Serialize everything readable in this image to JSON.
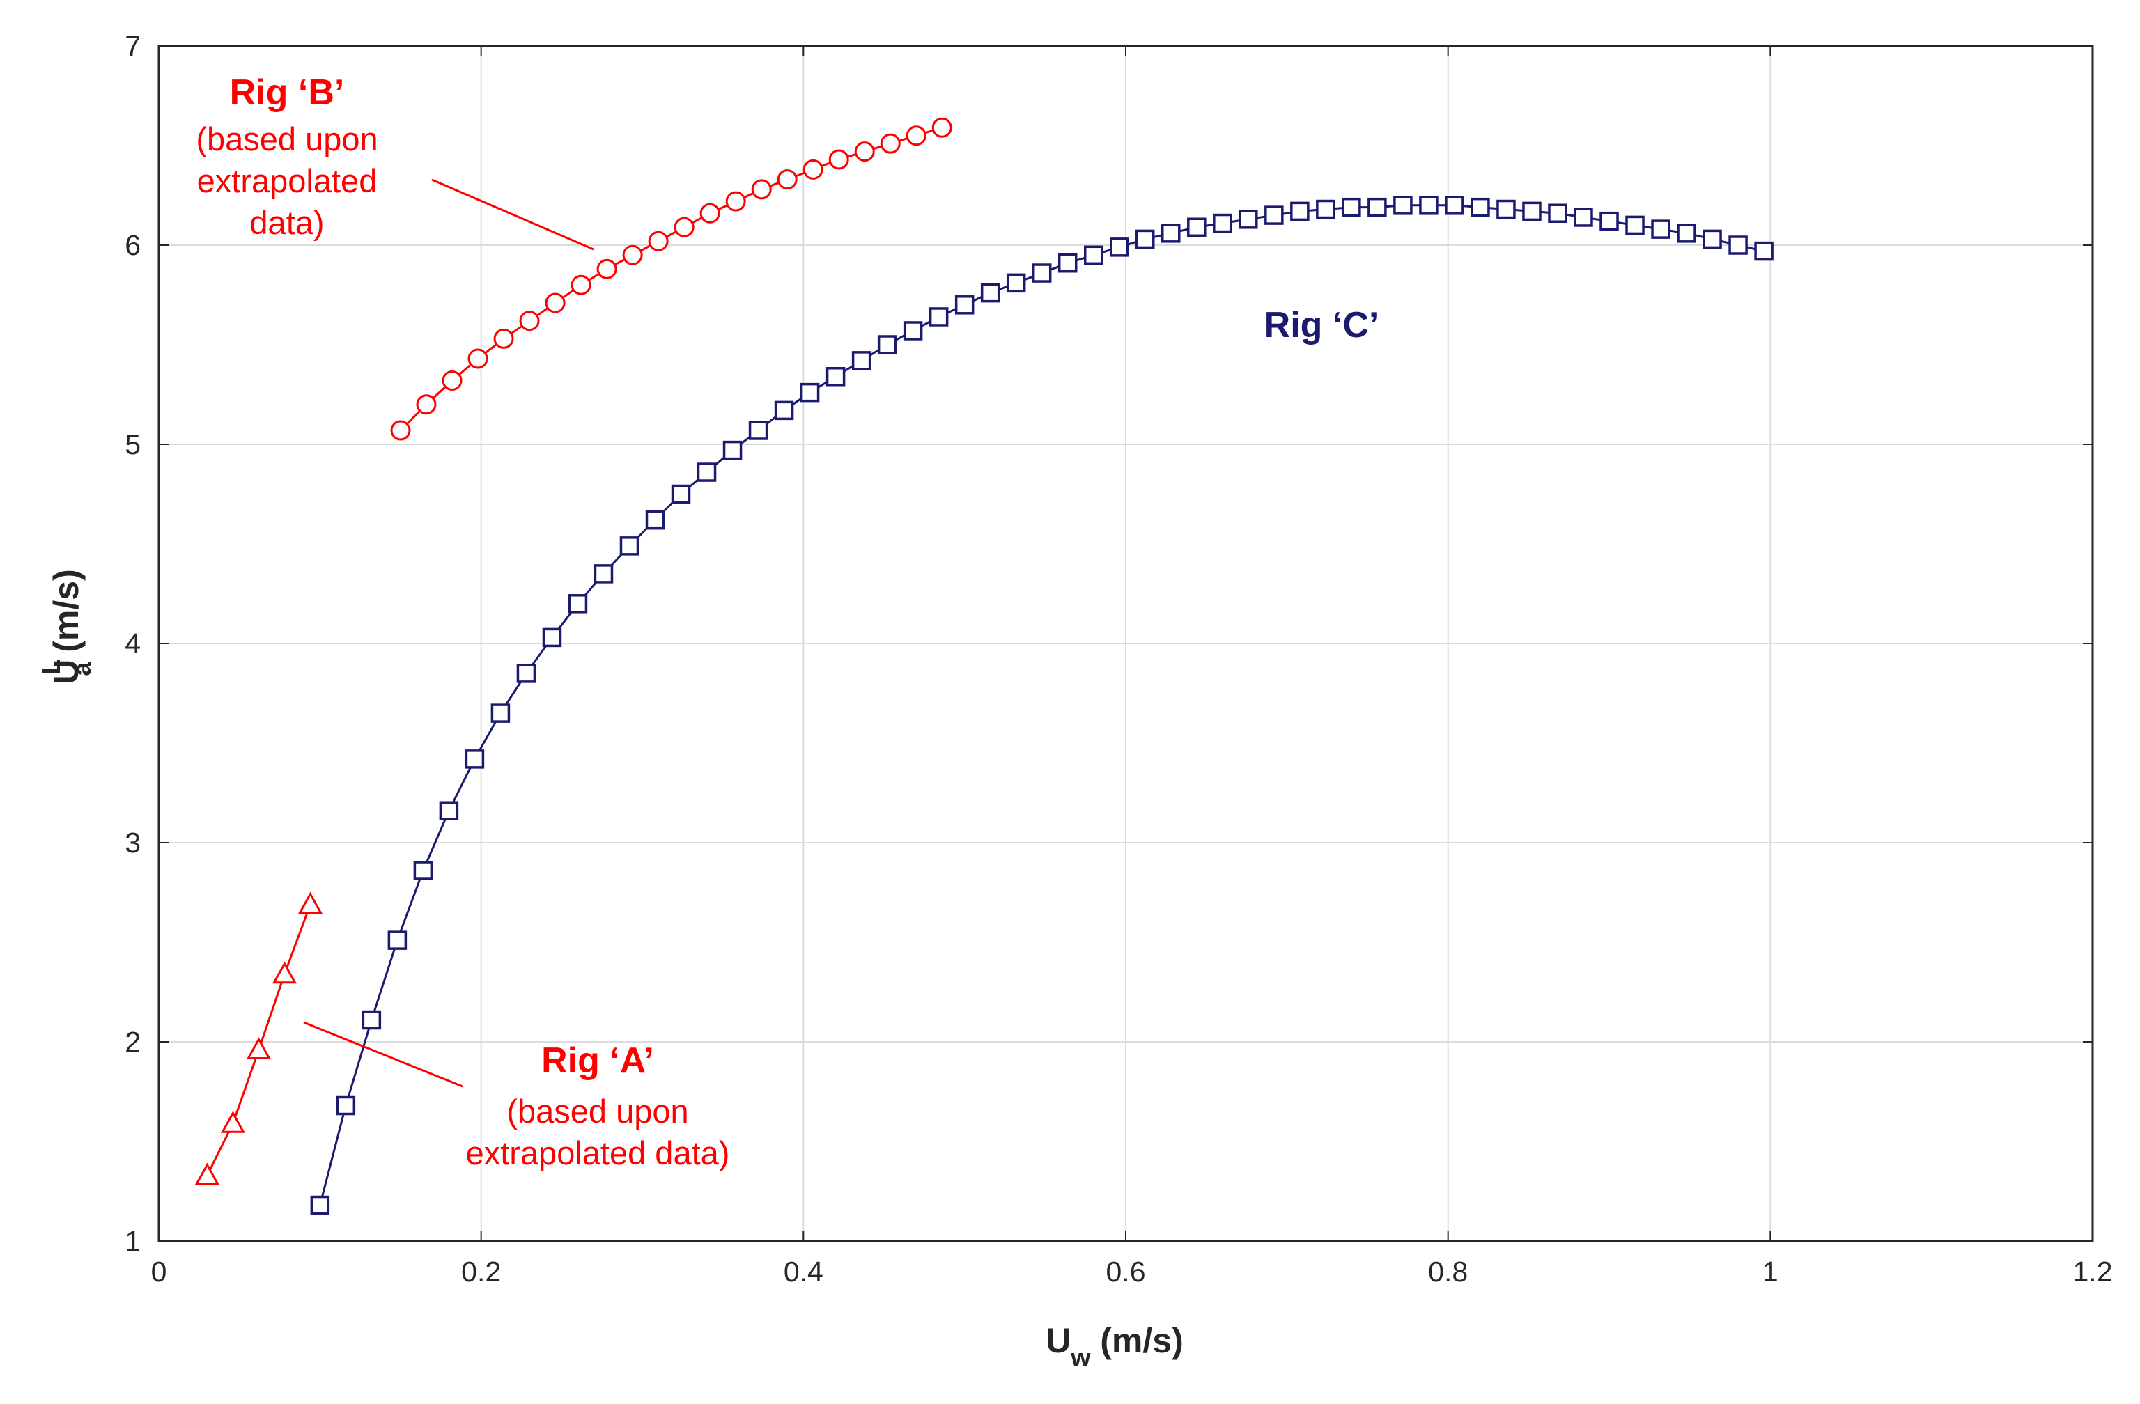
{
  "chart_data": {
    "type": "scatter",
    "title": "",
    "xlabel": {
      "main": "U",
      "sub": "w",
      "unit": " (m/s)"
    },
    "ylabel": {
      "main": "U",
      "sup": "L",
      "sub": "a",
      "unit": " (m/s)"
    },
    "xlim": [
      0,
      1.2
    ],
    "ylim": [
      1,
      7
    ],
    "grid": true,
    "x_ticks": [
      0,
      0.2,
      0.4,
      0.6,
      0.8,
      1,
      1.2
    ],
    "x_tick_labels": [
      "0",
      "0.2",
      "0.4",
      "0.6",
      "0.8",
      "1",
      "1.2"
    ],
    "y_ticks": [
      1,
      2,
      3,
      4,
      5,
      6,
      7
    ],
    "y_tick_labels": [
      "1",
      "2",
      "3",
      "4",
      "5",
      "6",
      "7"
    ],
    "colors": {
      "red": "#ff0000",
      "navy": "#1a1a6e",
      "grid": "#dcdcdc",
      "axis": "#262626"
    },
    "series": [
      {
        "name": "Rig 'A'",
        "marker": "triangle",
        "color": "#ff0000",
        "x": [
          0.03,
          0.046,
          0.062,
          0.078,
          0.094
        ],
        "y": [
          1.33,
          1.59,
          1.96,
          2.34,
          2.69
        ]
      },
      {
        "name": "Rig 'B'",
        "marker": "circle",
        "color": "#ff0000",
        "x": [
          0.15,
          0.166,
          0.182,
          0.198,
          0.214,
          0.23,
          0.246,
          0.262,
          0.278,
          0.294,
          0.31,
          0.326,
          0.342,
          0.358,
          0.374,
          0.39,
          0.406,
          0.422,
          0.438,
          0.454,
          0.47,
          0.486
        ],
        "y": [
          5.07,
          5.2,
          5.32,
          5.43,
          5.53,
          5.62,
          5.71,
          5.8,
          5.88,
          5.95,
          6.02,
          6.09,
          6.16,
          6.22,
          6.28,
          6.33,
          6.38,
          6.43,
          6.47,
          6.51,
          6.55,
          6.59
        ]
      },
      {
        "name": "Rig 'C'",
        "marker": "square",
        "color": "#1a1a6e",
        "x": [
          0.1,
          0.116,
          0.132,
          0.148,
          0.164,
          0.18,
          0.196,
          0.212,
          0.228,
          0.244,
          0.26,
          0.276,
          0.292,
          0.308,
          0.324,
          0.34,
          0.356,
          0.372,
          0.388,
          0.404,
          0.42,
          0.436,
          0.452,
          0.468,
          0.484,
          0.5,
          0.516,
          0.532,
          0.548,
          0.564,
          0.58,
          0.596,
          0.612,
          0.628,
          0.644,
          0.66,
          0.676,
          0.692,
          0.708,
          0.724,
          0.74,
          0.756,
          0.772,
          0.788,
          0.804,
          0.82,
          0.836,
          0.852,
          0.868,
          0.884,
          0.9,
          0.916,
          0.932,
          0.948,
          0.964,
          0.98,
          0.996
        ],
        "y": [
          1.18,
          1.68,
          2.11,
          2.51,
          2.86,
          3.16,
          3.42,
          3.65,
          3.85,
          4.03,
          4.2,
          4.35,
          4.49,
          4.62,
          4.75,
          4.86,
          4.97,
          5.07,
          5.17,
          5.26,
          5.34,
          5.42,
          5.5,
          5.57,
          5.64,
          5.7,
          5.76,
          5.81,
          5.86,
          5.91,
          5.95,
          5.99,
          6.03,
          6.06,
          6.09,
          6.11,
          6.13,
          6.15,
          6.17,
          6.18,
          6.19,
          6.19,
          6.2,
          6.2,
          6.2,
          6.19,
          6.18,
          6.17,
          6.16,
          6.14,
          6.12,
          6.1,
          6.08,
          6.06,
          6.03,
          6.0,
          5.97
        ]
      }
    ],
    "annotations": {
      "rig_a": {
        "title": "Rig ‘A’",
        "lines": [
          "(based upon",
          "extrapolated data)"
        ],
        "color": "#ff0000"
      },
      "rig_b": {
        "title": "Rig ‘B’",
        "lines": [
          "(based upon",
          "extrapolated",
          "data)"
        ],
        "color": "#ff0000"
      },
      "rig_c": {
        "title": "Rig ‘C’",
        "color": "#1a1a6e"
      }
    }
  }
}
